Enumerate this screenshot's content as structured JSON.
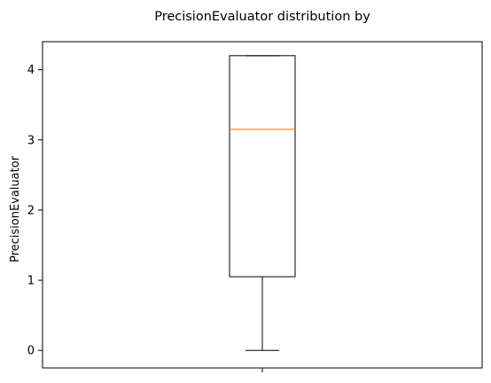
{
  "chart_data": {
    "type": "box",
    "title": "PrecisionEvaluator distribution by",
    "xlabel": "",
    "ylabel": "PrecisionEvaluator",
    "categories": [
      ""
    ],
    "ylim": [
      -0.25,
      4.4
    ],
    "yticks": [
      0,
      1,
      2,
      3,
      4
    ],
    "grid": false,
    "box": {
      "whisker_low": 0.0,
      "q1": 1.05,
      "median": 3.15,
      "q3": 4.2,
      "whisker_high": 4.2
    },
    "colors": {
      "box": "#000000",
      "median": "#ff7f0e"
    }
  }
}
